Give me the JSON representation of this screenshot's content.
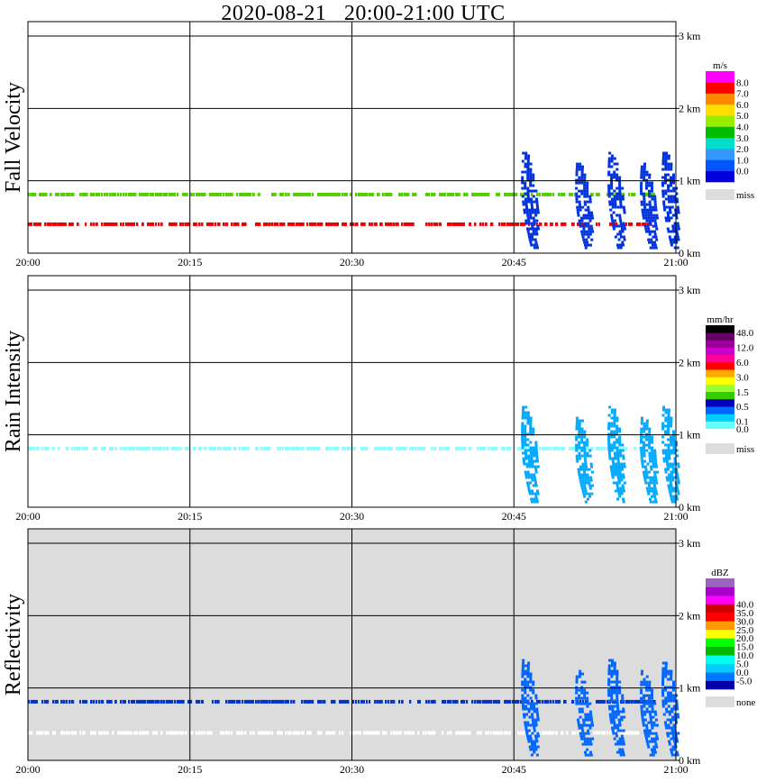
{
  "title": "2020-08-21   20:00-21:00 UTC",
  "colors": {
    "miss": "#dcdcdc",
    "grid": "#000000"
  },
  "chart_data": [
    {
      "type": "heatmap",
      "ylabel": "Fall Velocity",
      "x_ticks": [
        "20:00",
        "20:15",
        "20:30",
        "20:45",
        "21:00"
      ],
      "y_ticks": [
        "0 km",
        "1 km",
        "2 km",
        "3 km"
      ],
      "xlim": [
        "20:00",
        "21:00"
      ],
      "ylim_km": [
        0,
        3
      ],
      "background": "white",
      "legend": {
        "unit": "m/s",
        "colors": [
          "#0000dd",
          "#0055ff",
          "#3399ff",
          "#00ddcc",
          "#00bb00",
          "#99ee00",
          "#ffdd00",
          "#ff8800",
          "#ff0000",
          "#ff00ff"
        ],
        "labels": [
          "0.0",
          "1.0",
          "2.0",
          "3.0",
          "4.0",
          "5.0",
          "6.0",
          "7.0",
          "8.0"
        ],
        "miss_label": "miss"
      },
      "features": [
        {
          "kind": "band",
          "alt_km": 0.81,
          "color": "#55cc00",
          "t0": "20:00",
          "t1": "20:58"
        },
        {
          "kind": "band",
          "alt_km": 0.4,
          "color": "#ee0000",
          "t0": "20:00",
          "t1": "20:58"
        },
        {
          "kind": "cells",
          "color": "#0033dd",
          "alt_top_km": 1.4,
          "times": [
            "20:46",
            "20:51",
            "20:54",
            "20:57",
            "20:59"
          ]
        }
      ]
    },
    {
      "type": "heatmap",
      "ylabel": "Rain Intensity",
      "x_ticks": [
        "20:00",
        "20:15",
        "20:30",
        "20:45",
        "21:00"
      ],
      "y_ticks": [
        "0 km",
        "1 km",
        "2 km",
        "3 km"
      ],
      "xlim": [
        "20:00",
        "21:00"
      ],
      "ylim_km": [
        0,
        3
      ],
      "background": "white",
      "legend": {
        "unit": "mm/hr",
        "colors": [
          "#ffffff",
          "#66ffff",
          "#00ccff",
          "#0066ff",
          "#0000bb",
          "#33cc00",
          "#99ff33",
          "#ffff00",
          "#ffaa00",
          "#ff0000",
          "#ff0099",
          "#cc00cc",
          "#990099",
          "#660066",
          "#000000"
        ],
        "labels": [
          "0.0",
          "0.1",
          "",
          "0.5",
          "",
          "1.5",
          "",
          "3.0",
          "",
          "6.0",
          "",
          "12.0",
          "",
          "48.0"
        ],
        "miss_label": "miss"
      },
      "features": [
        {
          "kind": "band",
          "alt_km": 0.81,
          "color": "#88ffff",
          "t0": "20:00",
          "t1": "20:58"
        },
        {
          "kind": "cells",
          "color": "#00aaff",
          "alt_top_km": 1.4,
          "times": [
            "20:46",
            "20:51",
            "20:54",
            "20:57",
            "20:59"
          ]
        }
      ]
    },
    {
      "type": "heatmap",
      "ylabel": "Reflectivity",
      "x_ticks": [
        "20:00",
        "20:15",
        "20:30",
        "20:45",
        "21:00"
      ],
      "y_ticks": [
        "0 km",
        "1 km",
        "2 km",
        "3 km"
      ],
      "xlim": [
        "20:00",
        "21:00"
      ],
      "ylim_km": [
        0,
        3
      ],
      "background": "miss",
      "legend": {
        "unit": "dBZ",
        "colors": [
          "#0000aa",
          "#0077ff",
          "#00ccff",
          "#00ffee",
          "#00bb00",
          "#00ff00",
          "#ffff00",
          "#ff9900",
          "#ff0000",
          "#cc0000",
          "#ff00ff",
          "#aa00cc",
          "#9966bb"
        ],
        "labels": [
          "-5.0",
          "0.0",
          "5.0",
          "10.0",
          "15.0",
          "20.0",
          "25.0",
          "30.0",
          "35.0",
          "40.0"
        ],
        "miss_label": "none"
      },
      "features": [
        {
          "kind": "band",
          "alt_km": 0.81,
          "color": "#0033cc",
          "t0": "20:00",
          "t1": "20:58"
        },
        {
          "kind": "band",
          "alt_km": 0.38,
          "color": "#ffffff",
          "t0": "20:00",
          "t1": "20:58"
        },
        {
          "kind": "cells",
          "color": "#0066ff",
          "alt_top_km": 1.4,
          "times": [
            "20:46",
            "20:51",
            "20:54",
            "20:57",
            "20:59"
          ]
        }
      ]
    }
  ]
}
